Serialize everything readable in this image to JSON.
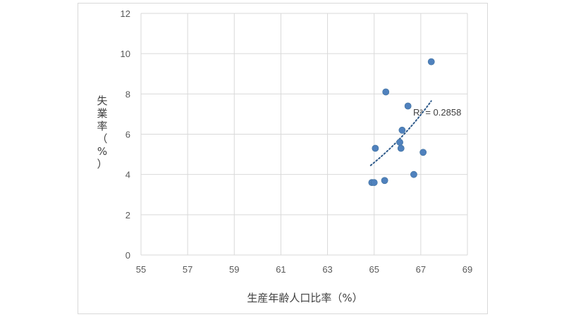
{
  "chart_data": {
    "type": "scatter",
    "xlabel": "生産年齢人口比率（%）",
    "ylabel": "失業率（%）",
    "xlim": [
      55,
      69
    ],
    "ylim": [
      0,
      12
    ],
    "xticks": [
      "55",
      "57",
      "59",
      "61",
      "63",
      "65",
      "67",
      "69"
    ],
    "yticks": [
      "0",
      "2",
      "4",
      "6",
      "8",
      "10",
      "12"
    ],
    "grid": true,
    "marker_color": "#4f81bd",
    "trendline_color": "#2e5a8a",
    "trendline": {
      "label": "R² = 0.2858",
      "x_range": [
        64.85,
        67.45
      ],
      "y_range": [
        4.45,
        7.65
      ]
    },
    "points": [
      {
        "x": 64.9,
        "y": 3.6
      },
      {
        "x": 65.0,
        "y": 3.6
      },
      {
        "x": 65.05,
        "y": 5.3
      },
      {
        "x": 65.45,
        "y": 3.7
      },
      {
        "x": 65.5,
        "y": 8.1
      },
      {
        "x": 66.1,
        "y": 5.6
      },
      {
        "x": 66.15,
        "y": 5.3
      },
      {
        "x": 66.2,
        "y": 6.2
      },
      {
        "x": 66.45,
        "y": 7.4
      },
      {
        "x": 66.7,
        "y": 4.0
      },
      {
        "x": 67.1,
        "y": 5.1
      },
      {
        "x": 67.45,
        "y": 9.6
      }
    ]
  }
}
